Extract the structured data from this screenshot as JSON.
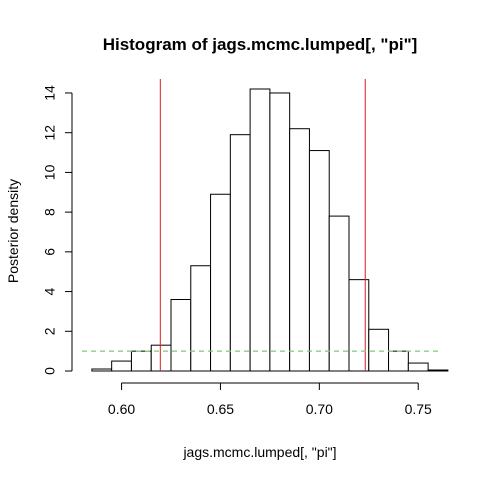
{
  "chart_data": {
    "type": "bar",
    "title": "Histogram of jags.mcmc.lumped[, \"pi\"]",
    "xlabel": "jags.mcmc.lumped[, \"pi\"]",
    "ylabel": "Posterior density",
    "xlim": [
      0.58,
      0.76
    ],
    "ylim": [
      0,
      14.2
    ],
    "x_ticks": [
      0.6,
      0.65,
      0.7,
      0.75
    ],
    "x_tick_labels": [
      "0.60",
      "0.65",
      "0.70",
      "0.75"
    ],
    "y_ticks": [
      0,
      2,
      4,
      6,
      8,
      10,
      12,
      14
    ],
    "y_tick_labels": [
      "0",
      "2",
      "4",
      "6",
      "8",
      "10",
      "12",
      "14"
    ],
    "bins": [
      {
        "x0": 0.585,
        "x1": 0.595,
        "value": 0.1
      },
      {
        "x0": 0.595,
        "x1": 0.605,
        "value": 0.5
      },
      {
        "x0": 0.605,
        "x1": 0.615,
        "value": 1.0
      },
      {
        "x0": 0.615,
        "x1": 0.625,
        "value": 1.3
      },
      {
        "x0": 0.625,
        "x1": 0.635,
        "value": 3.6
      },
      {
        "x0": 0.635,
        "x1": 0.645,
        "value": 5.3
      },
      {
        "x0": 0.645,
        "x1": 0.655,
        "value": 8.9
      },
      {
        "x0": 0.655,
        "x1": 0.665,
        "value": 11.9
      },
      {
        "x0": 0.665,
        "x1": 0.675,
        "value": 14.2
      },
      {
        "x0": 0.675,
        "x1": 0.685,
        "value": 14.0
      },
      {
        "x0": 0.685,
        "x1": 0.695,
        "value": 12.2
      },
      {
        "x0": 0.695,
        "x1": 0.705,
        "value": 11.1
      },
      {
        "x0": 0.705,
        "x1": 0.715,
        "value": 7.8
      },
      {
        "x0": 0.715,
        "x1": 0.725,
        "value": 4.6
      },
      {
        "x0": 0.725,
        "x1": 0.735,
        "value": 2.1
      },
      {
        "x0": 0.735,
        "x1": 0.745,
        "value": 1.0
      },
      {
        "x0": 0.745,
        "x1": 0.755,
        "value": 0.4
      },
      {
        "x0": 0.755,
        "x1": 0.765,
        "value": 0.05
      }
    ],
    "vertical_lines": [
      {
        "x": 0.6196,
        "color": "#e31a1c"
      },
      {
        "x": 0.7232,
        "color": "#e31a1c"
      }
    ],
    "horizontal_line": {
      "y": 1.0,
      "color": "#7fc97f",
      "style": "dashed"
    },
    "grid": false,
    "bar_fill": "#ffffff",
    "bar_stroke": "#000000"
  }
}
